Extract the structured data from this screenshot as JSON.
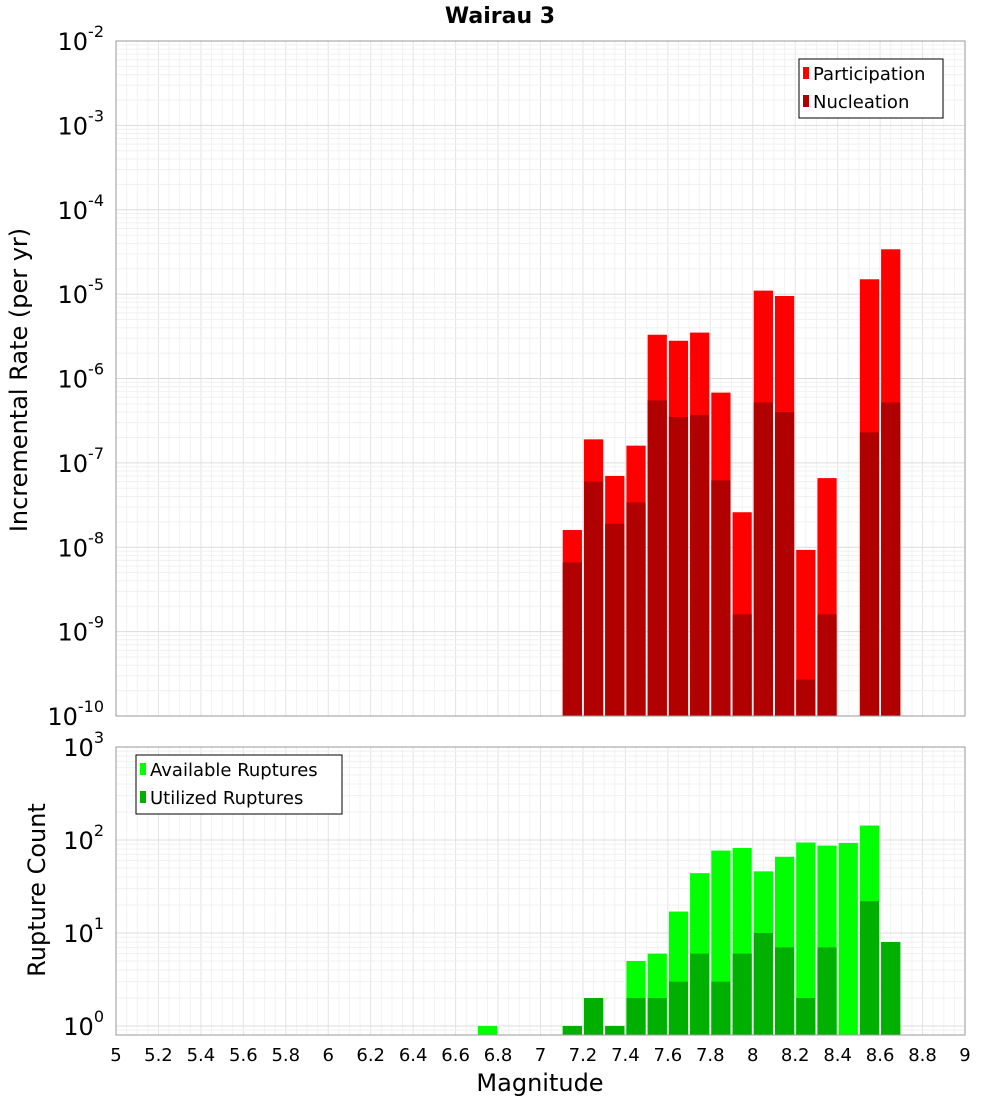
{
  "title": "Wairau 3",
  "xlabel": "Magnitude",
  "x_ticks": [
    "5",
    "5.2",
    "5.4",
    "5.6",
    "5.8",
    "6",
    "6.2",
    "6.4",
    "6.6",
    "6.8",
    "7",
    "7.2",
    "7.4",
    "7.6",
    "7.8",
    "8",
    "8.2",
    "8.4",
    "8.6",
    "8.8",
    "9"
  ],
  "chart_data": [
    {
      "type": "bar",
      "ylabel": "Incremental Rate (per yr)",
      "y_scale": "log",
      "ylim": [
        1e-10,
        0.01
      ],
      "xlim": [
        5,
        9
      ],
      "y_ticks": [
        {
          "base": "10",
          "exp": "-2"
        },
        {
          "base": "10",
          "exp": "-3"
        },
        {
          "base": "10",
          "exp": "-4"
        },
        {
          "base": "10",
          "exp": "-5"
        },
        {
          "base": "10",
          "exp": "-6"
        },
        {
          "base": "10",
          "exp": "-7"
        },
        {
          "base": "10",
          "exp": "-8"
        },
        {
          "base": "10",
          "exp": "-9"
        },
        {
          "base": "10",
          "exp": "-10"
        }
      ],
      "grid": true,
      "legend": "top-right",
      "x": [
        7.15,
        7.25,
        7.35,
        7.45,
        7.55,
        7.65,
        7.75,
        7.85,
        7.95,
        8.05,
        8.15,
        8.25,
        8.35,
        8.45,
        8.55,
        8.65
      ],
      "series": [
        {
          "name": "Participation",
          "color": "#ff0000",
          "values": [
            1.6e-08,
            1.9e-07,
            7e-08,
            1.6e-07,
            3.3e-06,
            2.8e-06,
            3.5e-06,
            6.8e-07,
            2.6e-08,
            1.1e-05,
            9.5e-06,
            9.3e-09,
            6.6e-08,
            null,
            1.5e-05,
            3.4e-05
          ]
        },
        {
          "name": "Nucleation",
          "color": "#b00000",
          "values": [
            6.6e-09,
            6e-08,
            1.9e-08,
            3.4e-08,
            5.5e-07,
            3.5e-07,
            3.7e-07,
            6.2e-08,
            1.6e-09,
            5.2e-07,
            4e-07,
            2.7e-10,
            1.6e-09,
            null,
            2.3e-07,
            5.2e-07
          ]
        }
      ]
    },
    {
      "type": "bar",
      "ylabel": "Rupture Count",
      "y_scale": "log",
      "ylim": [
        0.8,
        1000
      ],
      "xlim": [
        5,
        9
      ],
      "y_ticks": [
        {
          "base": "10",
          "exp": "3"
        },
        {
          "base": "10",
          "exp": "2"
        },
        {
          "base": "10",
          "exp": "1"
        },
        {
          "base": "10",
          "exp": "0"
        }
      ],
      "grid": true,
      "legend": "top-left",
      "x": [
        6.75,
        6.85,
        6.95,
        7.05,
        7.15,
        7.25,
        7.35,
        7.45,
        7.55,
        7.65,
        7.75,
        7.85,
        7.95,
        8.05,
        8.15,
        8.25,
        8.35,
        8.45,
        8.55,
        8.65
      ],
      "series": [
        {
          "name": "Available Ruptures",
          "color": "#00ff00",
          "values": [
            1,
            null,
            null,
            null,
            1,
            2,
            1,
            5,
            6,
            17,
            44,
            77,
            82,
            46,
            66,
            94,
            87,
            93,
            143,
            8
          ]
        },
        {
          "name": "Utilized Ruptures",
          "color": "#00b000",
          "values": [
            null,
            null,
            null,
            null,
            1,
            2,
            1,
            2,
            2,
            3,
            6,
            3,
            6,
            10,
            7,
            2,
            7,
            null,
            22,
            8
          ]
        }
      ]
    }
  ]
}
